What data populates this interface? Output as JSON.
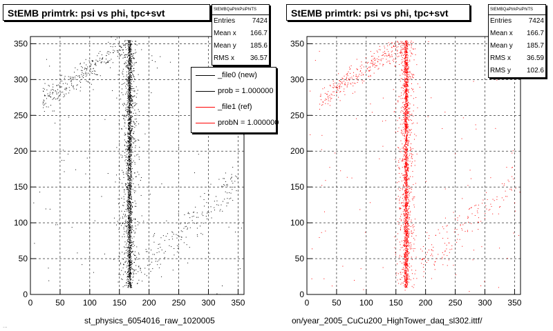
{
  "colors": {
    "new": "#000000",
    "ref": "#ff0000"
  },
  "chart_data": [
    {
      "type": "scatter",
      "title": "StEMB primtrk: psi vs phi, tpc+svt",
      "xlabel": "st_physics_6054016_raw_1020005",
      "ylabel": "",
      "xlim": [
        0,
        360
      ],
      "ylim": [
        0,
        360
      ],
      "xticks": [
        "0",
        "50",
        "100",
        "150",
        "200",
        "250",
        "300",
        "350"
      ],
      "yticks": [
        "0",
        "50",
        "100",
        "150",
        "200",
        "250",
        "300",
        "350"
      ],
      "grid": true,
      "color": "#000000",
      "series": [
        {
          "description": "scatter of psi vs phi; dense vertical band at x≈166, diffuse band x≈140-210, diagonal streaks",
          "points_x_center": 166.7,
          "points_y_mean": 185.6,
          "rms_x": 36.57
        }
      ],
      "stats": {
        "name": "StEMBQaPtrkPsiPhiTS",
        "rows": [
          {
            "label": "Entries",
            "value": "7424"
          },
          {
            "label": "Mean x",
            "value": "166.7"
          },
          {
            "label": "Mean y",
            "value": "185.6"
          },
          {
            "label": "RMS x",
            "value": "36.57"
          }
        ]
      },
      "legend": {
        "placement": "top-right",
        "entries": [
          {
            "label": "_file0 (new)",
            "color": "#000000"
          },
          {
            "label": "prob = 1.000000",
            "color": "#000000"
          },
          {
            "label": "_file1 (ref)",
            "color": "#ff0000"
          },
          {
            "label": "probN = 1.000000",
            "color": "#ff0000"
          }
        ]
      }
    },
    {
      "type": "scatter",
      "title": "StEMB primtrk: psi vs phi, tpc+svt",
      "xlabel": "on/year_2005_CuCu200_HighTower_daq_sl302.ittf/",
      "ylabel": "",
      "xlim": [
        0,
        360
      ],
      "ylim": [
        0,
        360
      ],
      "xticks": [
        "0",
        "50",
        "100",
        "150",
        "200",
        "250",
        "300",
        "350"
      ],
      "yticks": [
        "0",
        "50",
        "100",
        "150",
        "200",
        "250",
        "300",
        "350"
      ],
      "grid": true,
      "color": "#ff0000",
      "series": [
        {
          "description": "scatter of psi vs phi; dense vertical band at x≈166, diffuse band x≈140-210, diagonal streaks",
          "points_x_center": 166.7,
          "points_y_mean": 185.7,
          "rms_x": 36.59,
          "rms_y": 102.6
        }
      ],
      "stats": {
        "name": "StEMBQaPtrkPsiPhiTS",
        "rows": [
          {
            "label": "Entries",
            "value": "7424"
          },
          {
            "label": "Mean x",
            "value": "166.7"
          },
          {
            "label": "Mean y",
            "value": "185.7"
          },
          {
            "label": "RMS x",
            "value": "36.59"
          },
          {
            "label": "RMS y",
            "value": "102.6"
          }
        ]
      }
    }
  ],
  "footer_note": "..."
}
